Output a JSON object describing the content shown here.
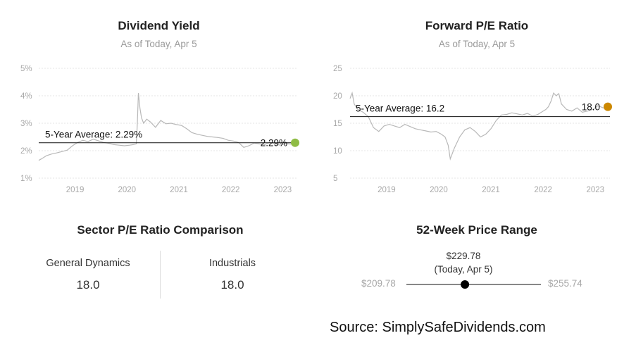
{
  "colors": {
    "line": "#b8b8b8",
    "grid": "#e6e6e6",
    "avg_line": "#111111",
    "yield_dot": "#8fbc45",
    "pe_dot": "#cc8800"
  },
  "chart_data": [
    {
      "type": "line",
      "title": "Dividend Yield",
      "subtitle": "As of Today, Apr 5",
      "y_ticks": [
        "5%",
        "4%",
        "3%",
        "2%",
        "1%"
      ],
      "ylim": [
        1,
        5
      ],
      "x_ticks": [
        "2019",
        "2020",
        "2021",
        "2022",
        "2023"
      ],
      "xlim": [
        2018.3,
        2023.28
      ],
      "average": 2.29,
      "average_label": "5-Year Average: 2.29%",
      "current": 2.29,
      "current_label": "2.29%",
      "series": [
        {
          "x": [
            2018.3,
            2018.35,
            2018.45,
            2018.55,
            2018.65,
            2018.75,
            2018.85,
            2018.95,
            2019.05,
            2019.15,
            2019.25,
            2019.35,
            2019.45,
            2019.55,
            2019.65,
            2019.75,
            2019.85,
            2019.95,
            2020.05,
            2020.12,
            2020.18,
            2020.2,
            2020.22,
            2020.25,
            2020.28,
            2020.32,
            2020.38,
            2020.45,
            2020.55,
            2020.65,
            2020.75,
            2020.85,
            2020.95,
            2021.05,
            2021.15,
            2021.25,
            2021.35,
            2021.45,
            2021.55,
            2021.65,
            2021.75,
            2021.85,
            2021.95,
            2022.05,
            2022.15,
            2022.25,
            2022.35,
            2022.45,
            2022.55,
            2022.65,
            2022.75,
            2022.85,
            2022.95,
            2023.05,
            2023.15,
            2023.25
          ],
          "y": [
            1.65,
            1.7,
            1.82,
            1.88,
            1.92,
            1.97,
            2.02,
            2.18,
            2.3,
            2.38,
            2.33,
            2.42,
            2.36,
            2.3,
            2.27,
            2.22,
            2.2,
            2.18,
            2.2,
            2.22,
            2.25,
            3.0,
            4.1,
            3.55,
            3.2,
            3.0,
            3.15,
            3.05,
            2.85,
            3.1,
            2.98,
            3.0,
            2.95,
            2.92,
            2.8,
            2.66,
            2.6,
            2.56,
            2.52,
            2.5,
            2.48,
            2.45,
            2.38,
            2.35,
            2.3,
            2.12,
            2.18,
            2.28,
            2.25,
            2.22,
            2.3,
            2.26,
            2.2,
            2.26,
            2.24,
            2.29
          ]
        }
      ]
    },
    {
      "type": "line",
      "title": "Forward P/E Ratio",
      "subtitle": "As of Today, Apr 5",
      "y_ticks": [
        "25",
        "20",
        "15",
        "10",
        "5"
      ],
      "ylim": [
        5,
        25
      ],
      "x_ticks": [
        "2019",
        "2020",
        "2021",
        "2022",
        "2023"
      ],
      "xlim": [
        2018.3,
        2023.28
      ],
      "average": 16.2,
      "average_label": "5-Year Average: 16.2",
      "current": 18.0,
      "current_label": "18.0",
      "series": [
        {
          "x": [
            2018.3,
            2018.34,
            2018.38,
            2018.45,
            2018.55,
            2018.65,
            2018.75,
            2018.85,
            2018.95,
            2019.05,
            2019.15,
            2019.25,
            2019.35,
            2019.45,
            2019.55,
            2019.65,
            2019.75,
            2019.85,
            2019.95,
            2020.05,
            2020.12,
            2020.18,
            2020.22,
            2020.3,
            2020.4,
            2020.5,
            2020.6,
            2020.7,
            2020.8,
            2020.9,
            2021.0,
            2021.1,
            2021.2,
            2021.3,
            2021.4,
            2021.5,
            2021.6,
            2021.7,
            2021.8,
            2021.9,
            2022.0,
            2022.05,
            2022.1,
            2022.15,
            2022.2,
            2022.25,
            2022.3,
            2022.35,
            2022.45,
            2022.55,
            2022.65,
            2022.75,
            2022.85,
            2022.95,
            2023.05,
            2023.15,
            2023.25
          ],
          "y": [
            19.5,
            20.5,
            18.5,
            17.5,
            17.0,
            16.2,
            14.2,
            13.5,
            14.5,
            14.8,
            14.5,
            14.2,
            14.8,
            14.4,
            14.0,
            13.8,
            13.6,
            13.4,
            13.5,
            13.0,
            12.5,
            11.0,
            8.5,
            10.5,
            12.5,
            13.8,
            14.2,
            13.5,
            12.5,
            13.0,
            14.0,
            15.5,
            16.5,
            16.6,
            16.9,
            16.7,
            16.5,
            16.8,
            16.3,
            16.6,
            17.2,
            17.5,
            18.0,
            19.0,
            20.5,
            20.0,
            20.4,
            18.5,
            17.5,
            17.2,
            17.8,
            17.0,
            17.2,
            17.5,
            18.2,
            17.8,
            18.0
          ]
        }
      ]
    }
  ],
  "sector": {
    "title": "Sector P/E Ratio Comparison",
    "left_name": "General Dynamics",
    "left_value": "18.0",
    "right_name": "Industrials",
    "right_value": "18.0"
  },
  "price_range": {
    "title": "52-Week Price Range",
    "current_label": "$229.78",
    "current_note": "(Today, Apr 5)",
    "low_label": "$209.78",
    "high_label": "$255.74",
    "low": 209.78,
    "high": 255.74,
    "current": 229.78
  },
  "source_text": "Source: SimplySafeDividends.com"
}
